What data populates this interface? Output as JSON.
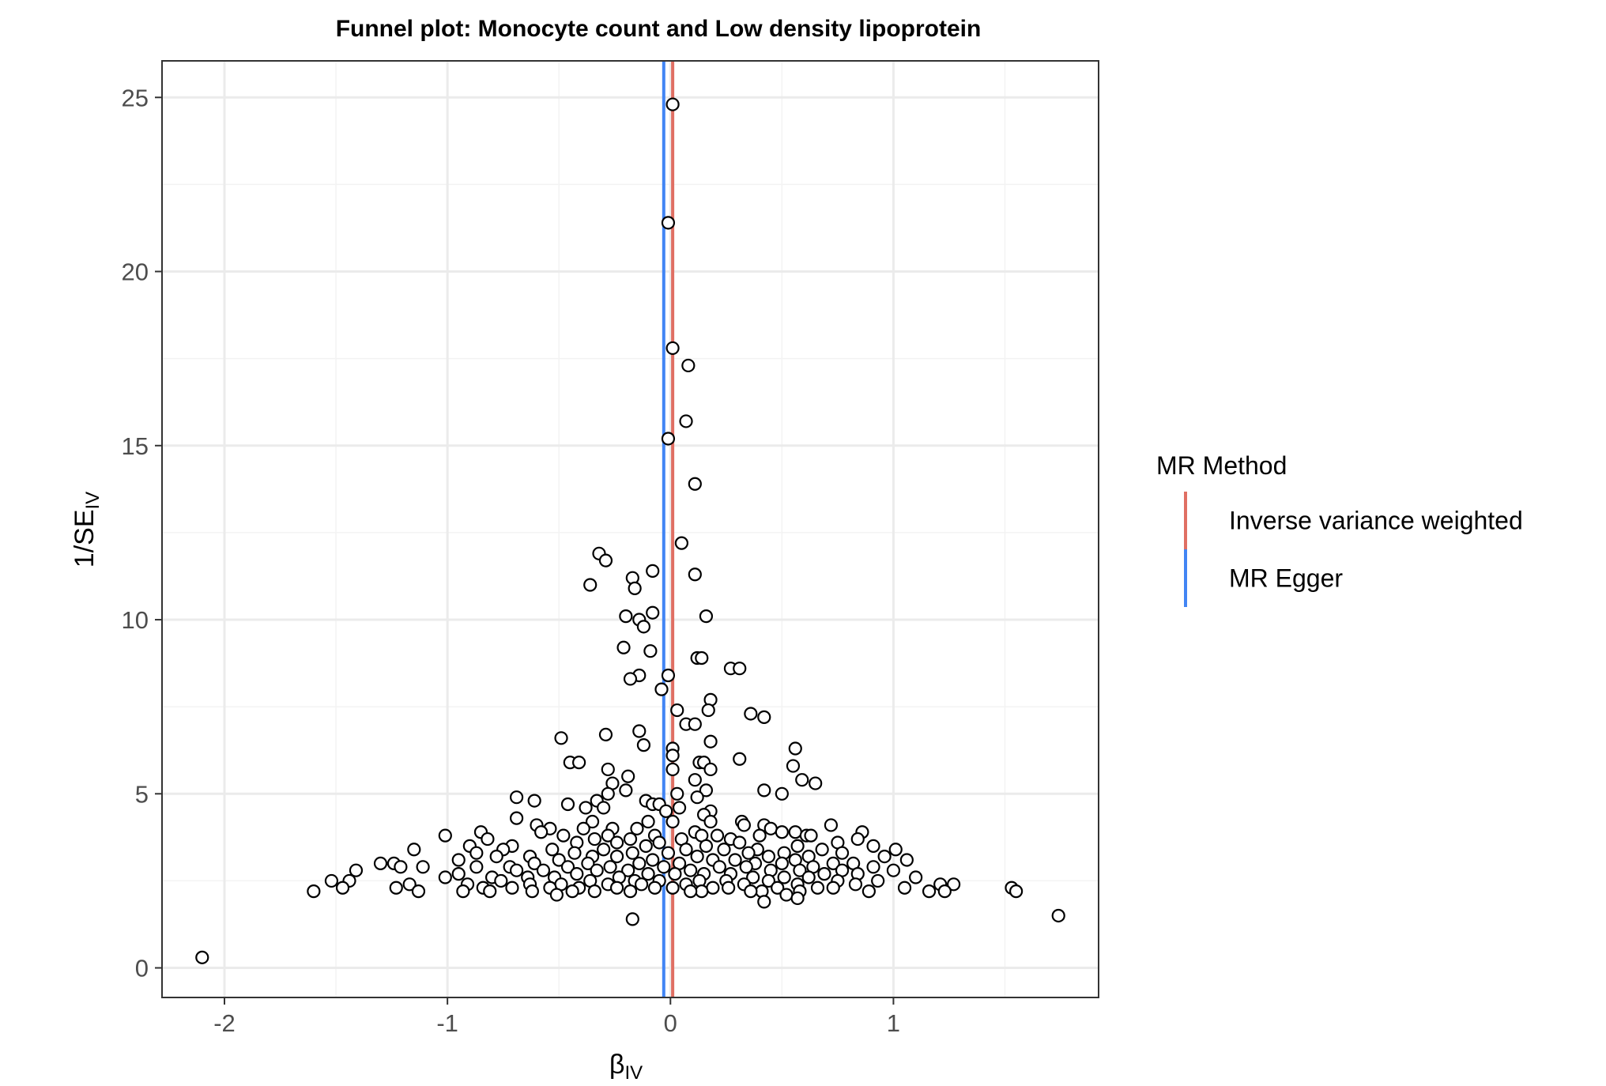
{
  "chart_data": {
    "type": "scatter",
    "title": "Funnel plot: Monocyte count and Low density lipoprotein",
    "xlabel": "β",
    "xlabel_sub": "IV",
    "ylabel": "1/SE",
    "ylabel_sub": "IV",
    "xlim": [
      -2.28,
      1.92
    ],
    "ylim": [
      -0.85,
      26.05
    ],
    "x_ticks": [
      -2,
      -1,
      0,
      1
    ],
    "x_tick_labels": [
      "-2",
      "-1",
      "0",
      "1"
    ],
    "y_ticks": [
      0,
      5,
      10,
      15,
      20,
      25
    ],
    "y_tick_labels": [
      "0",
      "5",
      "10",
      "15",
      "20",
      "25"
    ],
    "grid": true,
    "legend": {
      "title": "MR Method",
      "position": "right",
      "entries": [
        {
          "label": "Inverse variance weighted",
          "color": "#E06F63"
        },
        {
          "label": "MR Egger",
          "color": "#4285F4"
        }
      ]
    },
    "vlines": [
      {
        "method": "Inverse variance weighted",
        "x": 0.01,
        "color": "#E06F63"
      },
      {
        "method": "MR Egger",
        "x": -0.03,
        "color": "#4285F4"
      }
    ],
    "points": [
      {
        "x": 0.01,
        "y": 24.8
      },
      {
        "x": -0.01,
        "y": 21.4
      },
      {
        "x": 0.01,
        "y": 17.8
      },
      {
        "x": 0.08,
        "y": 17.3
      },
      {
        "x": 0.07,
        "y": 15.7
      },
      {
        "x": -0.01,
        "y": 15.2
      },
      {
        "x": 0.11,
        "y": 13.9
      },
      {
        "x": 0.05,
        "y": 12.2
      },
      {
        "x": -0.32,
        "y": 11.9
      },
      {
        "x": -0.29,
        "y": 11.7
      },
      {
        "x": -0.08,
        "y": 11.4
      },
      {
        "x": -0.17,
        "y": 11.2
      },
      {
        "x": -0.16,
        "y": 10.9
      },
      {
        "x": -0.36,
        "y": 11.0
      },
      {
        "x": 0.11,
        "y": 11.3
      },
      {
        "x": -0.08,
        "y": 10.2
      },
      {
        "x": -0.2,
        "y": 10.1
      },
      {
        "x": -0.14,
        "y": 10.0
      },
      {
        "x": -0.12,
        "y": 9.8
      },
      {
        "x": 0.16,
        "y": 10.1
      },
      {
        "x": -0.21,
        "y": 9.2
      },
      {
        "x": -0.09,
        "y": 9.1
      },
      {
        "x": 0.12,
        "y": 8.9
      },
      {
        "x": 0.14,
        "y": 8.9
      },
      {
        "x": 0.27,
        "y": 8.6
      },
      {
        "x": 0.31,
        "y": 8.6
      },
      {
        "x": -0.01,
        "y": 8.4
      },
      {
        "x": -0.14,
        "y": 8.4
      },
      {
        "x": -0.18,
        "y": 8.3
      },
      {
        "x": -0.04,
        "y": 8.0
      },
      {
        "x": 0.18,
        "y": 7.7
      },
      {
        "x": 0.03,
        "y": 7.4
      },
      {
        "x": 0.17,
        "y": 7.4
      },
      {
        "x": 0.36,
        "y": 7.3
      },
      {
        "x": 0.42,
        "y": 7.2
      },
      {
        "x": 0.07,
        "y": 7.0
      },
      {
        "x": 0.11,
        "y": 7.0
      },
      {
        "x": -0.14,
        "y": 6.8
      },
      {
        "x": -0.29,
        "y": 6.7
      },
      {
        "x": -0.49,
        "y": 6.6
      },
      {
        "x": 0.18,
        "y": 6.5
      },
      {
        "x": -0.12,
        "y": 6.4
      },
      {
        "x": 0.56,
        "y": 6.3
      },
      {
        "x": 0.01,
        "y": 6.3
      },
      {
        "x": 0.01,
        "y": 6.1
      },
      {
        "x": 0.31,
        "y": 6.0
      },
      {
        "x": 0.13,
        "y": 5.9
      },
      {
        "x": -0.45,
        "y": 5.9
      },
      {
        "x": -0.41,
        "y": 5.9
      },
      {
        "x": 0.15,
        "y": 5.9
      },
      {
        "x": 0.55,
        "y": 5.8
      },
      {
        "x": 0.18,
        "y": 5.7
      },
      {
        "x": 0.01,
        "y": 5.7
      },
      {
        "x": -0.28,
        "y": 5.7
      },
      {
        "x": -0.19,
        "y": 5.5
      },
      {
        "x": 0.59,
        "y": 5.4
      },
      {
        "x": 0.11,
        "y": 5.4
      },
      {
        "x": -0.26,
        "y": 5.3
      },
      {
        "x": 0.65,
        "y": 5.3
      },
      {
        "x": 0.42,
        "y": 5.1
      },
      {
        "x": -0.2,
        "y": 5.1
      },
      {
        "x": 0.16,
        "y": 5.1
      },
      {
        "x": -0.28,
        "y": 5.0
      },
      {
        "x": 0.5,
        "y": 5.0
      },
      {
        "x": 0.03,
        "y": 5.0
      },
      {
        "x": -0.69,
        "y": 4.9
      },
      {
        "x": -0.11,
        "y": 4.8
      },
      {
        "x": 0.12,
        "y": 4.9
      },
      {
        "x": -0.33,
        "y": 4.8
      },
      {
        "x": -0.61,
        "y": 4.8
      },
      {
        "x": -0.08,
        "y": 4.7
      },
      {
        "x": -0.05,
        "y": 4.7
      },
      {
        "x": -0.46,
        "y": 4.7
      },
      {
        "x": -0.3,
        "y": 4.6
      },
      {
        "x": 0.04,
        "y": 4.6
      },
      {
        "x": -0.38,
        "y": 4.6
      },
      {
        "x": 0.18,
        "y": 4.5
      },
      {
        "x": -0.02,
        "y": 4.5
      },
      {
        "x": 0.15,
        "y": 4.4
      },
      {
        "x": -0.69,
        "y": 4.3
      },
      {
        "x": 0.18,
        "y": 4.2
      },
      {
        "x": -0.1,
        "y": 4.2
      },
      {
        "x": 0.01,
        "y": 4.2
      },
      {
        "x": 0.32,
        "y": 4.2
      },
      {
        "x": -0.35,
        "y": 4.2
      },
      {
        "x": 0.72,
        "y": 4.1
      },
      {
        "x": -0.6,
        "y": 4.1
      },
      {
        "x": 0.42,
        "y": 4.1
      },
      {
        "x": -0.26,
        "y": 4.0
      },
      {
        "x": 0.33,
        "y": 4.1
      },
      {
        "x": -0.54,
        "y": 4.0
      },
      {
        "x": -0.15,
        "y": 4.0
      },
      {
        "x": -0.39,
        "y": 4.0
      },
      {
        "x": 0.45,
        "y": 4.0
      },
      {
        "x": 0.11,
        "y": 3.9
      },
      {
        "x": -0.58,
        "y": 3.9
      },
      {
        "x": -0.85,
        "y": 3.9
      },
      {
        "x": 0.56,
        "y": 3.9
      },
      {
        "x": 0.5,
        "y": 3.9
      },
      {
        "x": 0.4,
        "y": 3.8
      },
      {
        "x": 0.86,
        "y": 3.9
      },
      {
        "x": -0.28,
        "y": 3.8
      },
      {
        "x": 0.14,
        "y": 3.8
      },
      {
        "x": -1.01,
        "y": 3.8
      },
      {
        "x": 0.61,
        "y": 3.8
      },
      {
        "x": -0.07,
        "y": 3.8
      },
      {
        "x": 0.21,
        "y": 3.8
      },
      {
        "x": -0.34,
        "y": 3.7
      },
      {
        "x": 0.84,
        "y": 3.7
      },
      {
        "x": -0.48,
        "y": 3.8
      },
      {
        "x": 0.63,
        "y": 3.8
      },
      {
        "x": -0.18,
        "y": 3.7
      },
      {
        "x": 0.05,
        "y": 3.7
      },
      {
        "x": 0.27,
        "y": 3.7
      },
      {
        "x": -0.82,
        "y": 3.7
      },
      {
        "x": 0.75,
        "y": 3.6
      },
      {
        "x": -0.05,
        "y": 3.6
      },
      {
        "x": -0.24,
        "y": 3.6
      },
      {
        "x": 0.31,
        "y": 3.6
      },
      {
        "x": -0.42,
        "y": 3.6
      },
      {
        "x": 0.91,
        "y": 3.5
      },
      {
        "x": 0.16,
        "y": 3.5
      },
      {
        "x": -0.71,
        "y": 3.5
      },
      {
        "x": 0.57,
        "y": 3.5
      },
      {
        "x": -0.11,
        "y": 3.5
      },
      {
        "x": -0.9,
        "y": 3.5
      },
      {
        "x": 0.39,
        "y": 3.4
      },
      {
        "x": 0.07,
        "y": 3.4
      },
      {
        "x": -0.3,
        "y": 3.4
      },
      {
        "x": -0.75,
        "y": 3.4
      },
      {
        "x": 0.68,
        "y": 3.4
      },
      {
        "x": 1.01,
        "y": 3.4
      },
      {
        "x": -0.53,
        "y": 3.4
      },
      {
        "x": -1.15,
        "y": 3.4
      },
      {
        "x": 0.24,
        "y": 3.4
      },
      {
        "x": 0.77,
        "y": 3.3
      },
      {
        "x": -0.17,
        "y": 3.3
      },
      {
        "x": 0.35,
        "y": 3.3
      },
      {
        "x": -0.01,
        "y": 3.3
      },
      {
        "x": 0.51,
        "y": 3.3
      },
      {
        "x": -0.43,
        "y": 3.3
      },
      {
        "x": -0.87,
        "y": 3.3
      },
      {
        "x": 0.12,
        "y": 3.2
      },
      {
        "x": 0.62,
        "y": 3.2
      },
      {
        "x": -0.63,
        "y": 3.2
      },
      {
        "x": -0.24,
        "y": 3.2
      },
      {
        "x": 0.44,
        "y": 3.2
      },
      {
        "x": -0.78,
        "y": 3.2
      },
      {
        "x": 0.96,
        "y": 3.2
      },
      {
        "x": -0.35,
        "y": 3.2
      },
      {
        "x": 0.29,
        "y": 3.1
      },
      {
        "x": -0.08,
        "y": 3.1
      },
      {
        "x": 0.56,
        "y": 3.1
      },
      {
        "x": -0.5,
        "y": 3.1
      },
      {
        "x": 0.19,
        "y": 3.1
      },
      {
        "x": 1.06,
        "y": 3.1
      },
      {
        "x": -0.95,
        "y": 3.1
      },
      {
        "x": 0.73,
        "y": 3.0
      },
      {
        "x": -0.14,
        "y": 3.0
      },
      {
        "x": 0.38,
        "y": 3.0
      },
      {
        "x": -0.37,
        "y": 3.0
      },
      {
        "x": -1.24,
        "y": 3.0
      },
      {
        "x": 0.82,
        "y": 3.0
      },
      {
        "x": -0.61,
        "y": 3.0
      },
      {
        "x": 0.04,
        "y": 3.0
      },
      {
        "x": 0.5,
        "y": 3.0
      },
      {
        "x": -1.3,
        "y": 3.0
      },
      {
        "x": -0.72,
        "y": 2.9
      },
      {
        "x": 0.64,
        "y": 2.9
      },
      {
        "x": -0.27,
        "y": 2.9
      },
      {
        "x": 0.22,
        "y": 2.9
      },
      {
        "x": -0.87,
        "y": 2.9
      },
      {
        "x": -1.11,
        "y": 2.9
      },
      {
        "x": 0.91,
        "y": 2.9
      },
      {
        "x": -0.03,
        "y": 2.9
      },
      {
        "x": 0.34,
        "y": 2.9
      },
      {
        "x": -0.46,
        "y": 2.9
      },
      {
        "x": 0.77,
        "y": 2.8
      },
      {
        "x": -1.41,
        "y": 2.8
      },
      {
        "x": -0.19,
        "y": 2.8
      },
      {
        "x": 0.09,
        "y": 2.8
      },
      {
        "x": 0.58,
        "y": 2.8
      },
      {
        "x": -0.57,
        "y": 2.8
      },
      {
        "x": 0.45,
        "y": 2.8
      },
      {
        "x": -0.69,
        "y": 2.8
      },
      {
        "x": 1.0,
        "y": 2.8
      },
      {
        "x": -0.33,
        "y": 2.8
      },
      {
        "x": 0.15,
        "y": 2.7
      },
      {
        "x": -1.21,
        "y": 2.9
      },
      {
        "x": 0.69,
        "y": 2.7
      },
      {
        "x": -0.1,
        "y": 2.7
      },
      {
        "x": -0.95,
        "y": 2.7
      },
      {
        "x": 0.27,
        "y": 2.7
      },
      {
        "x": -0.42,
        "y": 2.7
      },
      {
        "x": 0.84,
        "y": 2.7
      },
      {
        "x": 0.02,
        "y": 2.7
      },
      {
        "x": -0.8,
        "y": 2.6
      },
      {
        "x": 0.51,
        "y": 2.6
      },
      {
        "x": -0.23,
        "y": 2.6
      },
      {
        "x": 1.1,
        "y": 2.6
      },
      {
        "x": 0.37,
        "y": 2.6
      },
      {
        "x": -0.52,
        "y": 2.6
      },
      {
        "x": -1.01,
        "y": 2.6
      },
      {
        "x": 0.62,
        "y": 2.6
      },
      {
        "x": -0.64,
        "y": 2.6
      },
      {
        "x": 0.13,
        "y": 2.5
      },
      {
        "x": -0.16,
        "y": 2.5
      },
      {
        "x": 0.93,
        "y": 2.5
      },
      {
        "x": -0.36,
        "y": 2.5
      },
      {
        "x": 0.75,
        "y": 2.5
      },
      {
        "x": -1.52,
        "y": 2.5
      },
      {
        "x": 0.25,
        "y": 2.5
      },
      {
        "x": -0.05,
        "y": 2.5
      },
      {
        "x": -1.44,
        "y": 2.5
      },
      {
        "x": 0.44,
        "y": 2.5
      },
      {
        "x": -0.76,
        "y": 2.5
      },
      {
        "x": 1.21,
        "y": 2.4
      },
      {
        "x": -0.28,
        "y": 2.4
      },
      {
        "x": 0.57,
        "y": 2.4
      },
      {
        "x": -0.91,
        "y": 2.4
      },
      {
        "x": 0.07,
        "y": 2.4
      },
      {
        "x": -0.49,
        "y": 2.4
      },
      {
        "x": 1.27,
        "y": 2.4
      },
      {
        "x": 0.83,
        "y": 2.4
      },
      {
        "x": -0.13,
        "y": 2.4
      },
      {
        "x": -1.17,
        "y": 2.4
      },
      {
        "x": 0.33,
        "y": 2.4
      },
      {
        "x": -0.63,
        "y": 2.4
      },
      {
        "x": 0.19,
        "y": 2.3
      },
      {
        "x": 1.53,
        "y": 2.3
      },
      {
        "x": -0.41,
        "y": 2.3
      },
      {
        "x": 0.66,
        "y": 2.3
      },
      {
        "x": -0.84,
        "y": 2.3
      },
      {
        "x": -1.23,
        "y": 2.3
      },
      {
        "x": 0.01,
        "y": 2.3
      },
      {
        "x": 0.48,
        "y": 2.3
      },
      {
        "x": -0.24,
        "y": 2.3
      },
      {
        "x": 1.05,
        "y": 2.3
      },
      {
        "x": -0.71,
        "y": 2.3
      },
      {
        "x": 0.26,
        "y": 2.3
      },
      {
        "x": -1.47,
        "y": 2.3
      },
      {
        "x": -0.54,
        "y": 2.3
      },
      {
        "x": 0.73,
        "y": 2.3
      },
      {
        "x": -0.07,
        "y": 2.3
      },
      {
        "x": 0.41,
        "y": 2.2
      },
      {
        "x": -1.13,
        "y": 2.2
      },
      {
        "x": 0.14,
        "y": 2.2
      },
      {
        "x": -0.34,
        "y": 2.2
      },
      {
        "x": 0.89,
        "y": 2.2
      },
      {
        "x": -0.93,
        "y": 2.2
      },
      {
        "x": 1.55,
        "y": 2.2
      },
      {
        "x": 0.58,
        "y": 2.2
      },
      {
        "x": -0.18,
        "y": 2.2
      },
      {
        "x": -1.6,
        "y": 2.2
      },
      {
        "x": -0.62,
        "y": 2.2
      },
      {
        "x": 0.09,
        "y": 2.2
      },
      {
        "x": 1.16,
        "y": 2.2
      },
      {
        "x": -0.44,
        "y": 2.2
      },
      {
        "x": 0.36,
        "y": 2.2
      },
      {
        "x": -0.81,
        "y": 2.2
      },
      {
        "x": 1.23,
        "y": 2.2
      },
      {
        "x": 0.52,
        "y": 2.1
      },
      {
        "x": -0.51,
        "y": 2.1
      },
      {
        "x": 0.57,
        "y": 2.0
      },
      {
        "x": 0.42,
        "y": 1.9
      },
      {
        "x": 1.74,
        "y": 1.5
      },
      {
        "x": -0.17,
        "y": 1.4
      },
      {
        "x": -2.1,
        "y": 0.3
      }
    ]
  }
}
